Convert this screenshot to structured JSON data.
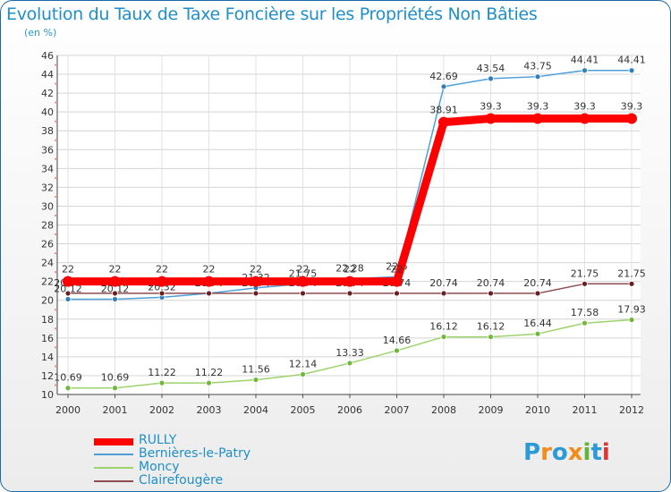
{
  "chart_data": {
    "type": "line",
    "title": "Evolution du Taux de Taxe Foncière sur les Propriétés Non Bâties",
    "ylabel": "(en %)",
    "xlabel": "",
    "ylim": [
      10,
      46
    ],
    "ytick_step": 2,
    "grid": true,
    "categories": [
      "2000",
      "2001",
      "2002",
      "2003",
      "2004",
      "2005",
      "2006",
      "2007",
      "2008",
      "2009",
      "2010",
      "2011",
      "2012"
    ],
    "series": [
      {
        "name": "Bernières-le-Patry",
        "color": "#4e9fd9",
        "dot": "#2f7fc0",
        "values": [
          20.12,
          20.12,
          20.32,
          20.74,
          21.32,
          21.75,
          22.28,
          22.5,
          42.69,
          43.54,
          43.75,
          44.41,
          44.41
        ],
        "labels": [
          "20.12",
          "20.12",
          "20.32",
          "20.74",
          "21.32",
          "21.75",
          "22.28",
          "22.5",
          "42.69",
          "43.54",
          "43.75",
          "44.41",
          "44.41"
        ]
      },
      {
        "name": "Moncy",
        "color": "#9ed36b",
        "dot": "#6fb83a",
        "values": [
          10.69,
          10.69,
          11.22,
          11.22,
          11.56,
          12.14,
          13.33,
          14.66,
          16.12,
          16.12,
          16.44,
          17.58,
          17.93
        ],
        "labels": [
          "10.69",
          "10.69",
          "11.22",
          "11.22",
          "11.56",
          "12.14",
          "13.33",
          "14.66",
          "16.12",
          "16.12",
          "16.44",
          "17.58",
          "17.93"
        ]
      },
      {
        "name": "Clairefougère",
        "color": "#8f4d52",
        "dot": "#6b1e22",
        "values": [
          20.74,
          20.74,
          20.74,
          20.74,
          20.74,
          20.74,
          20.74,
          20.74,
          20.74,
          20.74,
          20.74,
          21.75,
          21.75
        ],
        "labels": [
          "20.74",
          "20.74",
          "20.74",
          "20.74",
          "20.74",
          "20.74",
          "20.74",
          "20.74",
          "20.74",
          "20.74",
          "20.74",
          "21.75",
          "21.75"
        ]
      },
      {
        "name": "RULLY",
        "color": "#ff0000",
        "dot": "#ff0000",
        "values": [
          22,
          22,
          22,
          22,
          22,
          22,
          22,
          22,
          38.91,
          39.3,
          39.3,
          39.3,
          39.3
        ],
        "labels": [
          "22",
          "22",
          "22",
          "22",
          "22",
          "22",
          "22",
          "22",
          "38.91",
          "39.3",
          "39.3",
          "39.3",
          "39.3"
        ]
      }
    ],
    "legend_order": [
      "RULLY",
      "Bernières-le-Patry",
      "Moncy",
      "Clairefougère"
    ],
    "legend_placement": "bottom-left"
  },
  "logo": {
    "text": "Proxiti",
    "colors": [
      "#2b9bd8",
      "#f28c1c",
      "#2b9bd8",
      "#f28c1c",
      "#62b33b",
      "#2b9bd8",
      "#e3342f"
    ]
  }
}
